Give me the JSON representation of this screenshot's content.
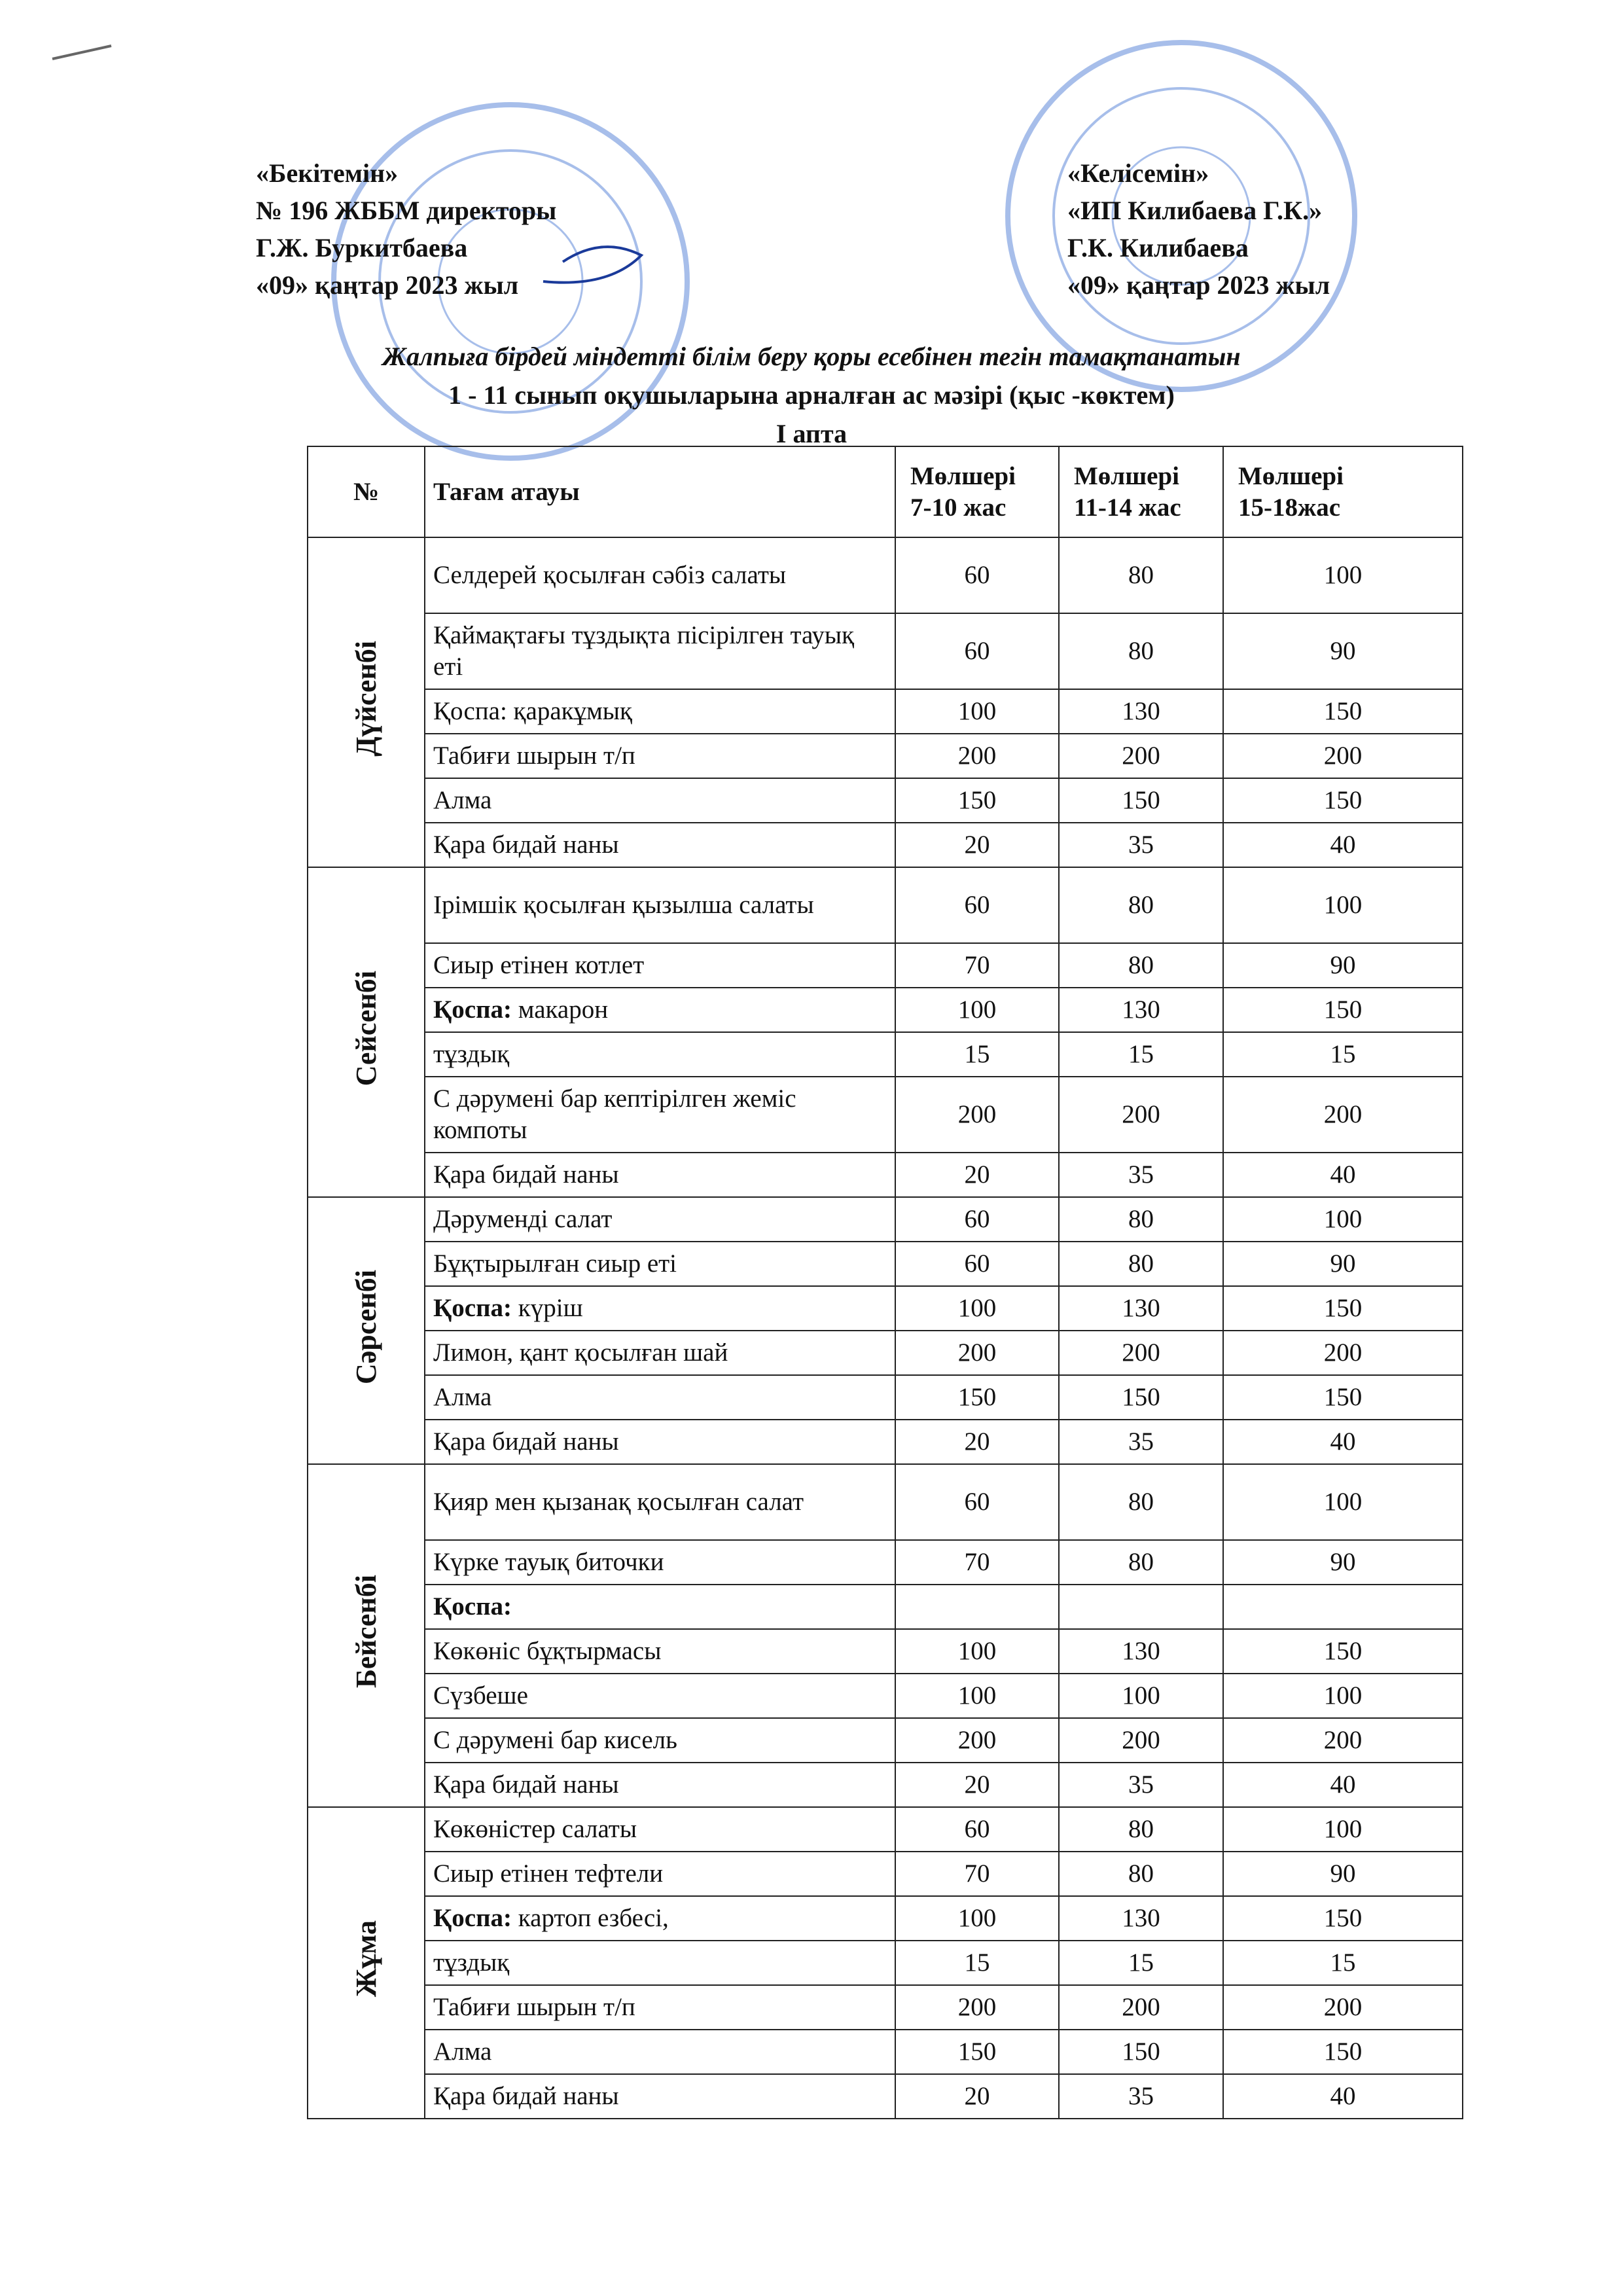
{
  "header": {
    "left": [
      "«Бекітемін»",
      "№ 196 ЖББМ  директоры",
      "Г.Ж. Буркитбаева",
      "«09» қаңтар 2023 жыл"
    ],
    "right": [
      "«Келісемін»",
      "«ИП Килибаева Г.К.»",
      "Г.К. Килибаева",
      "«09» қаңтар 2023 жыл"
    ]
  },
  "title": [
    "Жалпыға бірдей міндетті білім беру қоры  есебінен тегін тамақтанатын",
    "1 - 11 сынып оқушыларына арналған ас мәзірі (қыс -көктем)",
    "I апта"
  ],
  "table": {
    "columns": [
      "№",
      "Тағам атауы",
      [
        "Мөлшері",
        "7-10 жас"
      ],
      [
        "Мөлшері",
        "11-14 жас"
      ],
      [
        "Мөлшері",
        "15-18жас"
      ]
    ],
    "days": [
      {
        "day": "Дүйсенбі",
        "rows": [
          {
            "name": "Селдерей қосылған сәбіз салаты",
            "values": [
              60,
              80,
              100
            ]
          },
          {
            "name": "Қаймақтағы тұздықта пісірілген тауық еті",
            "values": [
              60,
              80,
              90
            ]
          },
          {
            "name": "Қоспа: қаракұмық",
            "values": [
              100,
              130,
              150
            ]
          },
          {
            "name": "Табиғи шырын  т/п",
            "values": [
              200,
              200,
              200
            ]
          },
          {
            "name": "Алма",
            "values": [
              150,
              150,
              150
            ]
          },
          {
            "name": "Қара бидай наны",
            "values": [
              20,
              35,
              40
            ]
          }
        ]
      },
      {
        "day": "Сейсенбі",
        "rows": [
          {
            "name": "Ірімшік қосылған қызылша салаты",
            "values": [
              60,
              80,
              100
            ]
          },
          {
            "name": "Сиыр етінен котлет",
            "values": [
              70,
              80,
              90
            ]
          },
          {
            "prefix": "Қоспа:",
            "name": " макарон",
            "values": [
              100,
              130,
              150
            ]
          },
          {
            "name": "тұздық",
            "values": [
              15,
              15,
              15
            ]
          },
          {
            "name": "С дәрумені бар кептірілген жеміс компоты",
            "values": [
              200,
              200,
              200
            ]
          },
          {
            "name": "Қара бидай наны",
            "values": [
              20,
              35,
              40
            ]
          }
        ]
      },
      {
        "day": "Сәрсенбі",
        "rows": [
          {
            "name": "Дәруменді салат",
            "values": [
              60,
              80,
              100
            ]
          },
          {
            "name": "Бұқтырылған сиыр еті",
            "values": [
              60,
              80,
              90
            ]
          },
          {
            "prefix": "Қоспа:",
            "name": " күріш",
            "values": [
              100,
              130,
              150
            ]
          },
          {
            "name": "Лимон, қант қосылған шай",
            "values": [
              200,
              200,
              200
            ]
          },
          {
            "name": "Алма",
            "values": [
              150,
              150,
              150
            ]
          },
          {
            "name": "Қара бидай наны",
            "values": [
              20,
              35,
              40
            ]
          }
        ]
      },
      {
        "day": "Бейсенбі",
        "rows": [
          {
            "name": "Қияр мен қызанақ қосылған салат",
            "values": [
              60,
              80,
              100
            ]
          },
          {
            "name": "Күрке тауық  биточки",
            "values": [
              70,
              80,
              90
            ]
          },
          {
            "prefix": "Қоспа:"
          },
          {
            "name": "Көкөніс бұқтырмасы",
            "values": [
              100,
              130,
              150
            ]
          },
          {
            "name": "Сүзбеше",
            "values": [
              100,
              100,
              100
            ]
          },
          {
            "name": "С дәрумені бар кисель",
            "values": [
              200,
              200,
              200
            ]
          },
          {
            "name": "Қара бидай наны",
            "values": [
              20,
              35,
              40
            ]
          }
        ]
      },
      {
        "day": "Жұма",
        "rows": [
          {
            "name": "Көкөністер салаты",
            "values": [
              60,
              80,
              100
            ]
          },
          {
            "name": "Сиыр етінен тефтели",
            "values": [
              70,
              80,
              90
            ]
          },
          {
            "prefix": "Қоспа:",
            "name": " картоп езбесі,",
            "values": [
              100,
              130,
              150
            ]
          },
          {
            "name": "тұздық",
            "values": [
              15,
              15,
              15
            ]
          },
          {
            "name": "Табиғи шырын  т/п",
            "values": [
              200,
              200,
              200
            ]
          },
          {
            "name": "Алма",
            "values": [
              150,
              150,
              150
            ]
          },
          {
            "name": "Қара бидай наны",
            "values": [
              20,
              35,
              40
            ]
          }
        ]
      }
    ]
  }
}
